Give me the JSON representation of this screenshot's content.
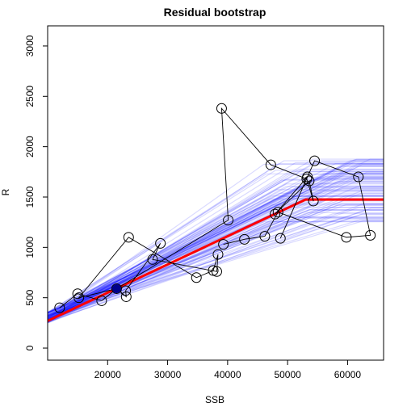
{
  "chart_data": {
    "type": "line",
    "title": "Residual bootstrap",
    "xlabel": "SSB",
    "ylabel": "R",
    "xlim": [
      10000,
      66000
    ],
    "ylim": [
      -120,
      3200
    ],
    "x_ticks": [
      20000,
      30000,
      40000,
      50000,
      60000
    ],
    "x_tick_labels": [
      "20000",
      "30000",
      "40000",
      "50000",
      "60000"
    ],
    "y_ticks": [
      0,
      500,
      1000,
      1500,
      2000,
      2500,
      3000
    ],
    "y_tick_labels": [
      "0",
      "500",
      "1000",
      "1500",
      "2000",
      "2500",
      "3000"
    ],
    "grid": false,
    "legend": "none",
    "colors": {
      "fit": "#ff0000",
      "bootstrap": "#0000ff",
      "bootstrap_opacity": 0.15,
      "observations": "#000000",
      "highlight_point": "#00008b"
    },
    "fitted_curve": {
      "name": "",
      "model": "hockey-stick",
      "x_start": 10000,
      "y_start": 270,
      "breakpoint_ssb": 53000,
      "plateau_r": 1475,
      "x_end": 66000
    },
    "bootstrap_curves": {
      "count": 100,
      "x_start": 10000,
      "y_start_range": [
        250,
        360
      ],
      "breakpoint_range": [
        46000,
        64000
      ],
      "plateau_range": [
        1250,
        1880
      ]
    },
    "observations": [
      {
        "ssb": 12000,
        "r": 400
      },
      {
        "ssb": 15000,
        "r": 540
      },
      {
        "ssb": 15200,
        "r": 500
      },
      {
        "ssb": 19000,
        "r": 470
      },
      {
        "ssb": 21500,
        "r": 590
      },
      {
        "ssb": 23000,
        "r": 570
      },
      {
        "ssb": 23100,
        "r": 510
      },
      {
        "ssb": 23500,
        "r": 1100
      },
      {
        "ssb": 27500,
        "r": 880
      },
      {
        "ssb": 28800,
        "r": 1040
      },
      {
        "ssb": 34800,
        "r": 700
      },
      {
        "ssb": 37600,
        "r": 770
      },
      {
        "ssb": 38200,
        "r": 760
      },
      {
        "ssb": 38400,
        "r": 930
      },
      {
        "ssb": 39000,
        "r": 2380
      },
      {
        "ssb": 39300,
        "r": 1030
      },
      {
        "ssb": 40100,
        "r": 1270
      },
      {
        "ssb": 42800,
        "r": 1080
      },
      {
        "ssb": 46200,
        "r": 1110
      },
      {
        "ssb": 47200,
        "r": 1820
      },
      {
        "ssb": 47900,
        "r": 1330
      },
      {
        "ssb": 48400,
        "r": 1350
      },
      {
        "ssb": 48800,
        "r": 1090
      },
      {
        "ssb": 53200,
        "r": 1680
      },
      {
        "ssb": 53300,
        "r": 1700
      },
      {
        "ssb": 53600,
        "r": 1660
      },
      {
        "ssb": 54300,
        "r": 1460
      },
      {
        "ssb": 54500,
        "r": 1860
      },
      {
        "ssb": 59800,
        "r": 1100
      },
      {
        "ssb": 61800,
        "r": 1700
      },
      {
        "ssb": 63800,
        "r": 1120
      }
    ],
    "highlighted_point": {
      "ssb": 21500,
      "r": 590
    },
    "connection_order": [
      0,
      1,
      3,
      4,
      6,
      5,
      9,
      8,
      12,
      13,
      11,
      10,
      7,
      2,
      4,
      16,
      14,
      19,
      23,
      26,
      25,
      20,
      24,
      22,
      27,
      29,
      30,
      28,
      21,
      18,
      17,
      15
    ]
  }
}
